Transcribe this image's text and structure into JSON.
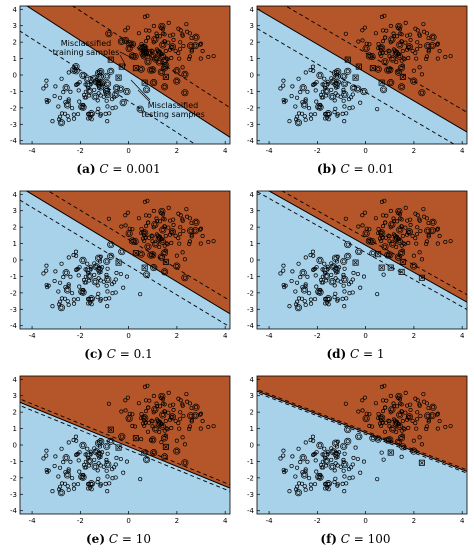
{
  "colors": {
    "upper_region": "#b5562a",
    "lower_region": "#a8d1ea",
    "boundary": "#000000"
  },
  "annotations": {
    "misclassified_training": "Misclassified\ntraining samples",
    "misclassified_testing": "Misclassified\ntesting samples"
  },
  "chart_data": [
    {
      "type": "scatter",
      "panel_label": "(a)",
      "c_symbol": "C",
      "c_value": "= 0.001",
      "xlim": [
        -4.5,
        4.2
      ],
      "ylim": [
        -4.2,
        4.2
      ],
      "xticks": [
        "-4",
        "-2",
        "0",
        "2",
        "4"
      ],
      "yticks": [
        "4",
        "3",
        "2",
        "1",
        "0",
        "-1",
        "-2",
        "-3",
        "-4"
      ],
      "boundary": {
        "x": [
          -4,
          4
        ],
        "y": [
          4.0,
          -3.6
        ]
      },
      "margin_offset": 1.8,
      "misclassified_count": 60
    },
    {
      "type": "scatter",
      "panel_label": "(b)",
      "c_symbol": "C",
      "c_value": "= 0.01",
      "xlim": [
        -4.5,
        4.2
      ],
      "ylim": [
        -4.2,
        4.2
      ],
      "xticks": [
        "-4",
        "-2",
        "0",
        "2",
        "4"
      ],
      "yticks": [
        "4",
        "3",
        "2",
        "1",
        "0",
        "-1",
        "-2",
        "-3",
        "-4"
      ],
      "boundary": {
        "x": [
          -4,
          4
        ],
        "y": [
          3.6,
          -3.3
        ]
      },
      "margin_offset": 1.2,
      "misclassified_count": 25
    },
    {
      "type": "scatter",
      "panel_label": "(c)",
      "c_symbol": "C",
      "c_value": "= 0.1",
      "xlim": [
        -4.5,
        4.2
      ],
      "ylim": [
        -4.2,
        4.2
      ],
      "xticks": [
        "-4",
        "-2",
        "0",
        "2",
        "4"
      ],
      "yticks": [
        "4",
        "3",
        "2",
        "1",
        "0",
        "-1",
        "-2",
        "-3",
        "-4"
      ],
      "boundary": {
        "x": [
          -4,
          4
        ],
        "y": [
          4.0,
          -3.1
        ]
      },
      "margin_offset": 0.8,
      "misclassified_count": 14
    },
    {
      "type": "scatter",
      "panel_label": "(d)",
      "c_symbol": "C",
      "c_value": "= 1",
      "xlim": [
        -4.5,
        4.2
      ],
      "ylim": [
        -4.2,
        4.2
      ],
      "xticks": [
        "-4",
        "-2",
        "0",
        "2",
        "4"
      ],
      "yticks": [
        "4",
        "3",
        "2",
        "1",
        "0",
        "-1",
        "-2",
        "-3",
        "-4"
      ],
      "boundary": {
        "x": [
          -4,
          4
        ],
        "y": [
          4.2,
          -2.4
        ]
      },
      "margin_offset": 0.45,
      "misclassified_count": 8
    },
    {
      "type": "scatter",
      "panel_label": "(e)",
      "c_symbol": "C",
      "c_value": "= 10",
      "xlim": [
        -4.5,
        4.2
      ],
      "ylim": [
        -4.2,
        4.2
      ],
      "xticks": [
        "-4",
        "-2",
        "0",
        "2",
        "4"
      ],
      "yticks": [
        "4",
        "3",
        "2",
        "1",
        "0",
        "-1",
        "-2",
        "-3",
        "-4"
      ],
      "boundary": {
        "x": [
          -4,
          4
        ],
        "y": [
          2.3,
          -2.5
        ]
      },
      "margin_offset": 0.2,
      "misclassified_count": 4
    },
    {
      "type": "scatter",
      "panel_label": "(f)",
      "c_symbol": "C",
      "c_value": "= 100",
      "xlim": [
        -4.5,
        4.2
      ],
      "ylim": [
        -4.2,
        4.2
      ],
      "xticks": [
        "-4",
        "-2",
        "0",
        "2",
        "4"
      ],
      "yticks": [
        "4",
        "3",
        "2",
        "1",
        "0",
        "-1",
        "-2",
        "-3",
        "-4"
      ],
      "boundary": {
        "x": [
          -4,
          4
        ],
        "y": [
          3.0,
          -1.5
        ]
      },
      "margin_offset": 0.1,
      "misclassified_count": 2
    }
  ]
}
